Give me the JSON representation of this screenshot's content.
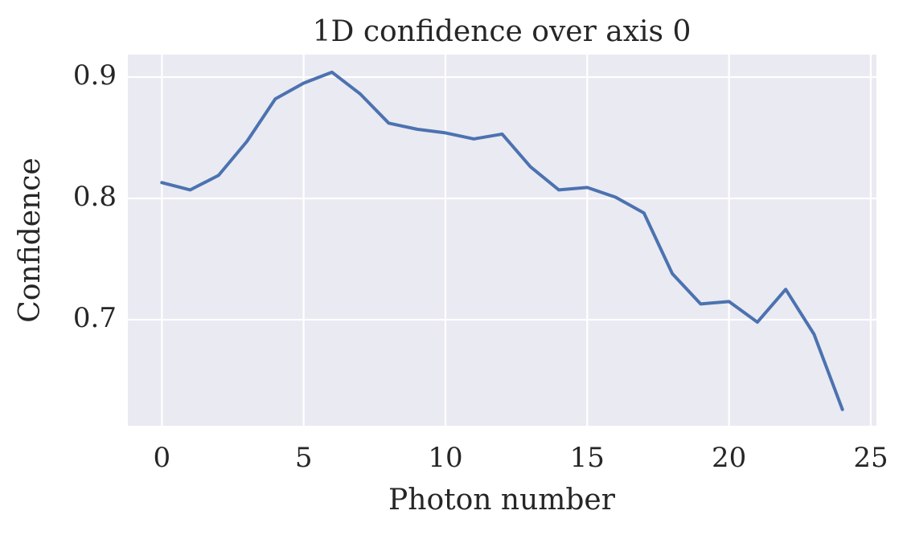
{
  "chart_data": {
    "type": "line",
    "title": "1D confidence over axis 0",
    "x_label": "Photon number",
    "y_label": "Confidence",
    "x": [
      0,
      1,
      2,
      3,
      4,
      5,
      6,
      7,
      8,
      9,
      10,
      11,
      12,
      13,
      14,
      15,
      16,
      17,
      18,
      19,
      20,
      21,
      22,
      23,
      24
    ],
    "series": [
      {
        "color": "#4c72b0",
        "values": [
          0.813,
          0.807,
          0.819,
          0.847,
          0.882,
          0.895,
          0.904,
          0.886,
          0.862,
          0.857,
          0.854,
          0.849,
          0.853,
          0.826,
          0.807,
          0.809,
          0.801,
          0.788,
          0.738,
          0.713,
          0.715,
          0.698,
          0.725,
          0.688,
          0.626
        ]
      }
    ],
    "xlim": [
      -1.2,
      25.2
    ],
    "ylim": [
      0.6126,
      0.9185
    ],
    "xticks": [
      0,
      5,
      10,
      15,
      20,
      25
    ],
    "yticks": [
      0.7,
      0.8,
      0.9
    ],
    "grid": true
  }
}
